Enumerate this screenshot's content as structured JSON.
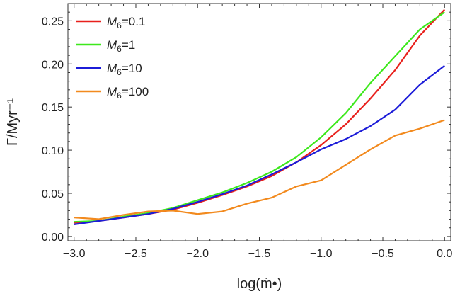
{
  "chart_data": {
    "type": "line",
    "xlabel": "log(ṁ•)",
    "ylabel": "Γ/Myr⁻¹",
    "xlim": [
      -3.05,
      0.05
    ],
    "ylim": [
      -0.005,
      0.27
    ],
    "grid": false,
    "legend_placement": "top-left",
    "x_ticks": [
      -3.0,
      -2.5,
      -2.0,
      -1.5,
      -1.0,
      -0.5,
      0.0
    ],
    "x_tick_labels": [
      "−3.0",
      "−2.5",
      "−2.0",
      "−1.5",
      "−1.0",
      "−0.5",
      "0.0"
    ],
    "y_ticks": [
      0.0,
      0.05,
      0.1,
      0.15,
      0.2,
      0.25
    ],
    "y_tick_labels": [
      "0.00",
      "0.05",
      "0.10",
      "0.15",
      "0.20",
      "0.25"
    ],
    "x": [
      -3.0,
      -2.8,
      -2.6,
      -2.4,
      -2.2,
      -2.0,
      -1.8,
      -1.6,
      -1.4,
      -1.2,
      -1.0,
      -0.8,
      -0.6,
      -0.4,
      -0.2,
      0.0
    ],
    "series": [
      {
        "name": "M6=0.1",
        "legend_main": "M",
        "legend_sub": "6",
        "legend_value": "=0.1",
        "color": "#e8201c",
        "values": [
          0.016,
          0.018,
          0.022,
          0.026,
          0.031,
          0.039,
          0.048,
          0.058,
          0.07,
          0.086,
          0.106,
          0.13,
          0.16,
          0.193,
          0.233,
          0.263
        ]
      },
      {
        "name": "M6=1",
        "legend_main": "M",
        "legend_sub": "6",
        "legend_value": "=1",
        "color": "#3de81c",
        "values": [
          0.017,
          0.018,
          0.023,
          0.027,
          0.033,
          0.042,
          0.051,
          0.062,
          0.075,
          0.092,
          0.115,
          0.143,
          0.178,
          0.209,
          0.24,
          0.26
        ]
      },
      {
        "name": "M6=10",
        "legend_main": "M",
        "legend_sub": "6",
        "legend_value": "=10",
        "color": "#1c1cd8",
        "values": [
          0.014,
          0.018,
          0.022,
          0.026,
          0.032,
          0.04,
          0.049,
          0.059,
          0.072,
          0.086,
          0.101,
          0.113,
          0.128,
          0.147,
          0.176,
          0.198
        ]
      },
      {
        "name": "M6=100",
        "legend_main": "M",
        "legend_sub": "6",
        "legend_value": "=100",
        "color": "#f28a1e",
        "values": [
          0.022,
          0.02,
          0.025,
          0.029,
          0.03,
          0.026,
          0.029,
          0.038,
          0.045,
          0.058,
          0.065,
          0.083,
          0.101,
          0.117,
          0.125,
          0.135
        ]
      }
    ]
  }
}
